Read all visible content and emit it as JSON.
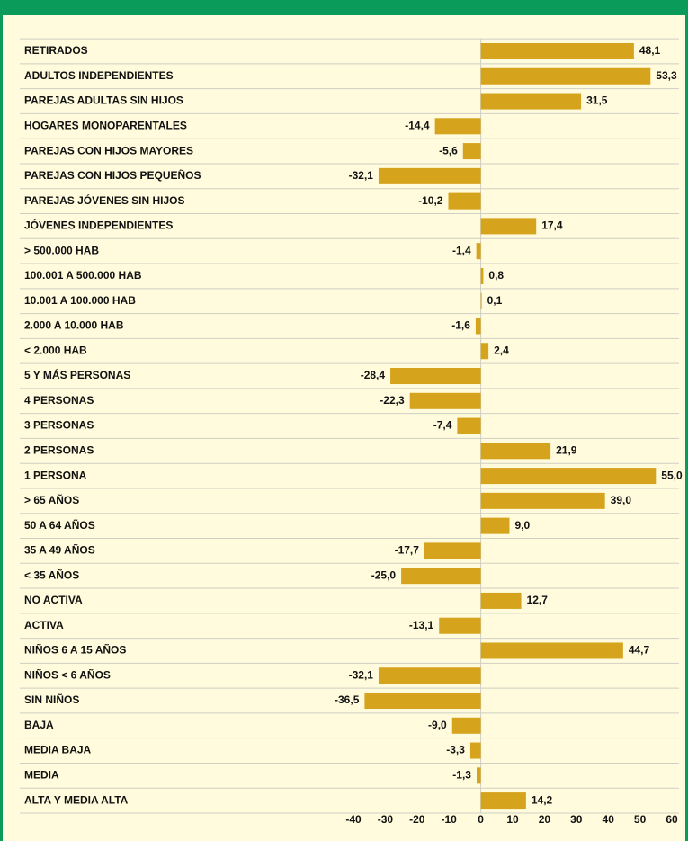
{
  "chart_data": {
    "type": "barh",
    "categories": [
      "RETIRADOS",
      "ADULTOS INDEPENDIENTES",
      "PAREJAS ADULTAS SIN HIJOS",
      "HOGARES MONOPARENTALES",
      "PAREJAS CON HIJOS MAYORES",
      "PAREJAS CON HIJOS PEQUEÑOS",
      "PAREJAS JÓVENES SIN HIJOS",
      "JÓVENES INDEPENDIENTES",
      "> 500.000 HAB",
      "100.001 A 500.000 HAB",
      "10.001 A 100.000 HAB",
      "2.000 A 10.000 HAB",
      "< 2.000 HAB",
      "5 Y MÁS PERSONAS",
      "4 PERSONAS",
      "3 PERSONAS",
      "2 PERSONAS",
      "1 PERSONA",
      "> 65 AÑOS",
      "50 A 64 AÑOS",
      "35 A 49 AÑOS",
      "< 35 AÑOS",
      "NO ACTIVA",
      "ACTIVA",
      "NIÑOS 6 A 15 AÑOS",
      "NIÑOS < 6 AÑOS",
      "SIN NIÑOS",
      "BAJA",
      "MEDIA BAJA",
      "MEDIA",
      "ALTA Y MEDIA ALTA"
    ],
    "values": [
      48.1,
      53.3,
      31.5,
      -14.4,
      -5.6,
      -32.1,
      -10.2,
      17.4,
      -1.4,
      0.8,
      0.1,
      -1.6,
      2.4,
      -28.4,
      -22.3,
      -7.4,
      21.9,
      55.0,
      39.0,
      9.0,
      -17.7,
      -25.0,
      12.7,
      -13.1,
      44.7,
      -32.1,
      -36.5,
      -9.0,
      -3.3,
      -1.3,
      14.2
    ],
    "value_labels": [
      "48,1",
      "53,3",
      "31,5",
      "-14,4",
      "-5,6",
      "-32,1",
      "-10,2",
      "17,4",
      "-1,4",
      "0,8",
      "0,1",
      "-1,6",
      "2,4",
      "-28,4",
      "-22,3",
      "-7,4",
      "21,9",
      "55,0",
      "39,0",
      "9,0",
      "-17,7",
      "-25,0",
      "12,7",
      "-13,1",
      "44,7",
      "-32,1",
      "-36,5",
      "-9,0",
      "-3,3",
      "-1,3",
      "14,2"
    ],
    "color": "#d6a31c",
    "xlim": [
      -40,
      60
    ],
    "xticks": [
      -40,
      -30,
      -20,
      -10,
      0,
      10,
      20,
      30,
      40,
      50,
      60
    ]
  }
}
